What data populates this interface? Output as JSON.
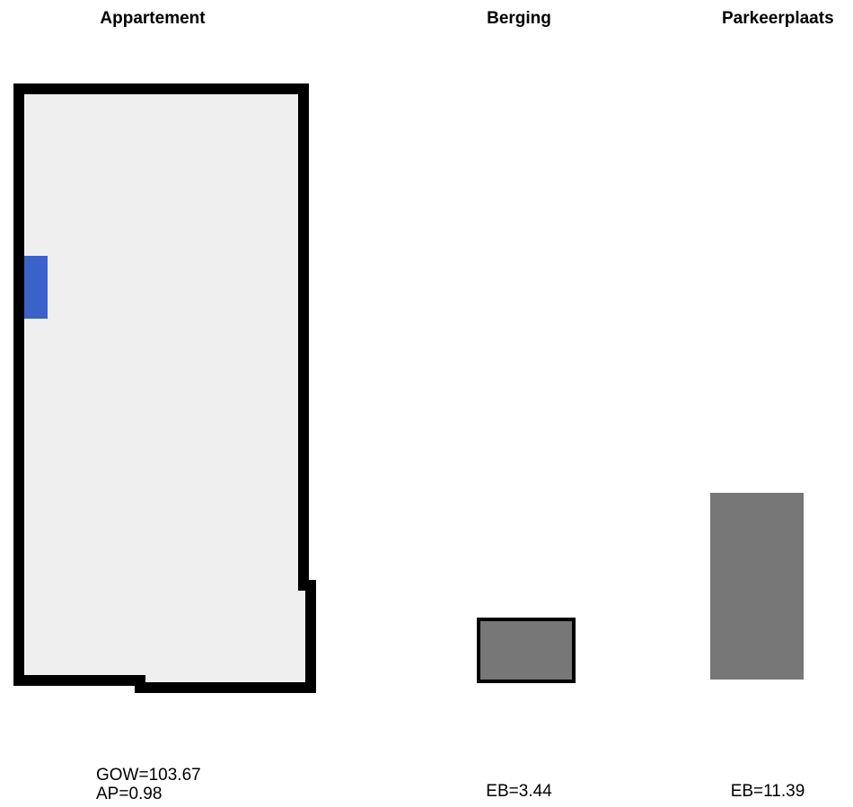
{
  "titles": {
    "appartement": "Appartement",
    "berging": "Berging",
    "parkeerplaats": "Parkeerplaats"
  },
  "captions": {
    "appartement_gow": "GOW=103.67",
    "appartement_ap": "AP=0.98",
    "berging": "EB=3.44",
    "parkeerplaats": "EB=11.39"
  },
  "colors": {
    "wall": "#000000",
    "floor": "#efefef",
    "marker": "#3a62c8",
    "unit_fill": "#777777"
  }
}
